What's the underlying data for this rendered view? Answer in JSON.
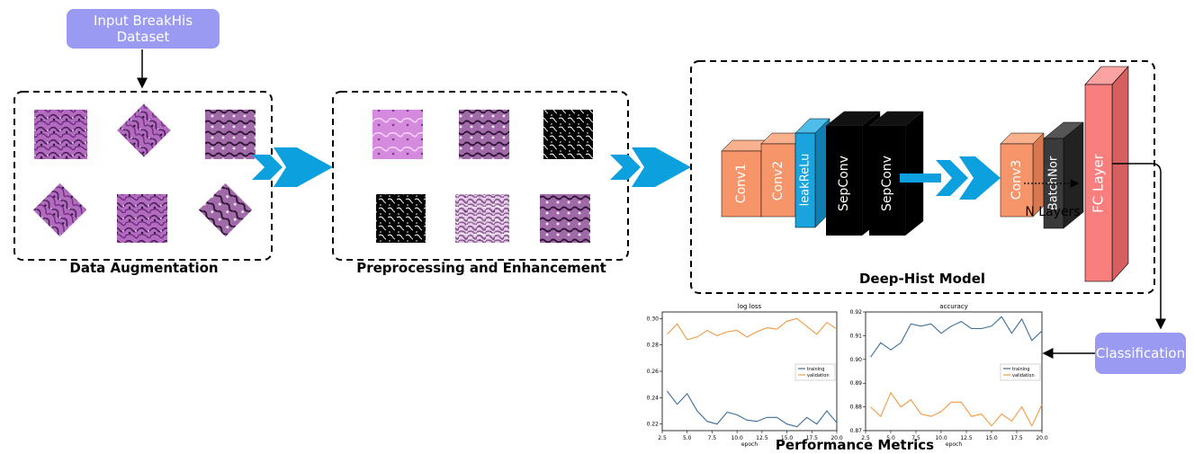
{
  "input_label": "Input BreakHis Dataset",
  "stages": {
    "augmentation": "Data Augmentation",
    "preprocessing": "Preprocessing and Enhancement",
    "model": "Deep-Hist Model",
    "metrics": "Performance Metrics"
  },
  "classification_label": "Classification",
  "layers": {
    "conv1": "Conv1",
    "conv2": "Conv2",
    "leaky": "leakReLu",
    "sep1": "SepConv",
    "sep2": "SepConv",
    "conv3": "Conv3",
    "batchnorm": "BatchNor",
    "fc": "FC Layer",
    "n_layers": "N Layers"
  },
  "colors": {
    "input_pill": "#9a9af2",
    "conv": "#f7956a",
    "leaky": "#1aa3dc",
    "sepconv": "#000000",
    "batchnorm": "#3a3a3a",
    "fc": "#f97f7f",
    "arrow": "#0da0de",
    "training": "#3b6e9a",
    "validation": "#f09a42"
  },
  "chart_data": [
    {
      "type": "line",
      "title": "log loss",
      "xlabel": "epoch",
      "ylabel": "",
      "xlim": [
        2.5,
        20.0
      ],
      "ylim": [
        0.215,
        0.305
      ],
      "x_ticks": [
        "2.5",
        "5.0",
        "7.5",
        "10.0",
        "12.5",
        "15.0",
        "17.5",
        "20.0"
      ],
      "y_ticks": [
        "0.30",
        "0.28",
        "0.26",
        "0.24",
        "0.22"
      ],
      "x": [
        3,
        4,
        5,
        6,
        7,
        8,
        9,
        10,
        11,
        12,
        13,
        14,
        15,
        16,
        17,
        18,
        19,
        20
      ],
      "series": [
        {
          "name": "training",
          "values": [
            0.245,
            0.235,
            0.243,
            0.23,
            0.222,
            0.22,
            0.229,
            0.227,
            0.223,
            0.222,
            0.225,
            0.225,
            0.22,
            0.218,
            0.225,
            0.22,
            0.23,
            0.221
          ]
        },
        {
          "name": "validation",
          "values": [
            0.288,
            0.296,
            0.284,
            0.286,
            0.291,
            0.287,
            0.29,
            0.291,
            0.286,
            0.29,
            0.293,
            0.292,
            0.298,
            0.3,
            0.294,
            0.288,
            0.297,
            0.292
          ]
        }
      ],
      "legend": "center-right"
    },
    {
      "type": "line",
      "title": "accuracy",
      "xlabel": "epoch",
      "ylabel": "",
      "xlim": [
        2.5,
        20.0
      ],
      "ylim": [
        0.87,
        0.92
      ],
      "x_ticks": [
        "2.5",
        "5.0",
        "7.5",
        "10.0",
        "12.5",
        "15.0",
        "17.5",
        "20.0"
      ],
      "y_ticks": [
        "0.92",
        "0.91",
        "0.90",
        "0.89",
        "0.88",
        "0.87"
      ],
      "x": [
        3,
        4,
        5,
        6,
        7,
        8,
        9,
        10,
        11,
        12,
        13,
        14,
        15,
        16,
        17,
        18,
        19,
        20
      ],
      "series": [
        {
          "name": "training",
          "values": [
            0.901,
            0.907,
            0.904,
            0.907,
            0.915,
            0.914,
            0.915,
            0.911,
            0.914,
            0.916,
            0.913,
            0.913,
            0.914,
            0.918,
            0.911,
            0.917,
            0.908,
            0.912
          ]
        },
        {
          "name": "validation",
          "values": [
            0.88,
            0.876,
            0.886,
            0.88,
            0.883,
            0.877,
            0.876,
            0.878,
            0.882,
            0.882,
            0.876,
            0.877,
            0.872,
            0.877,
            0.874,
            0.88,
            0.872,
            0.881
          ]
        }
      ],
      "legend": "center-right"
    }
  ]
}
